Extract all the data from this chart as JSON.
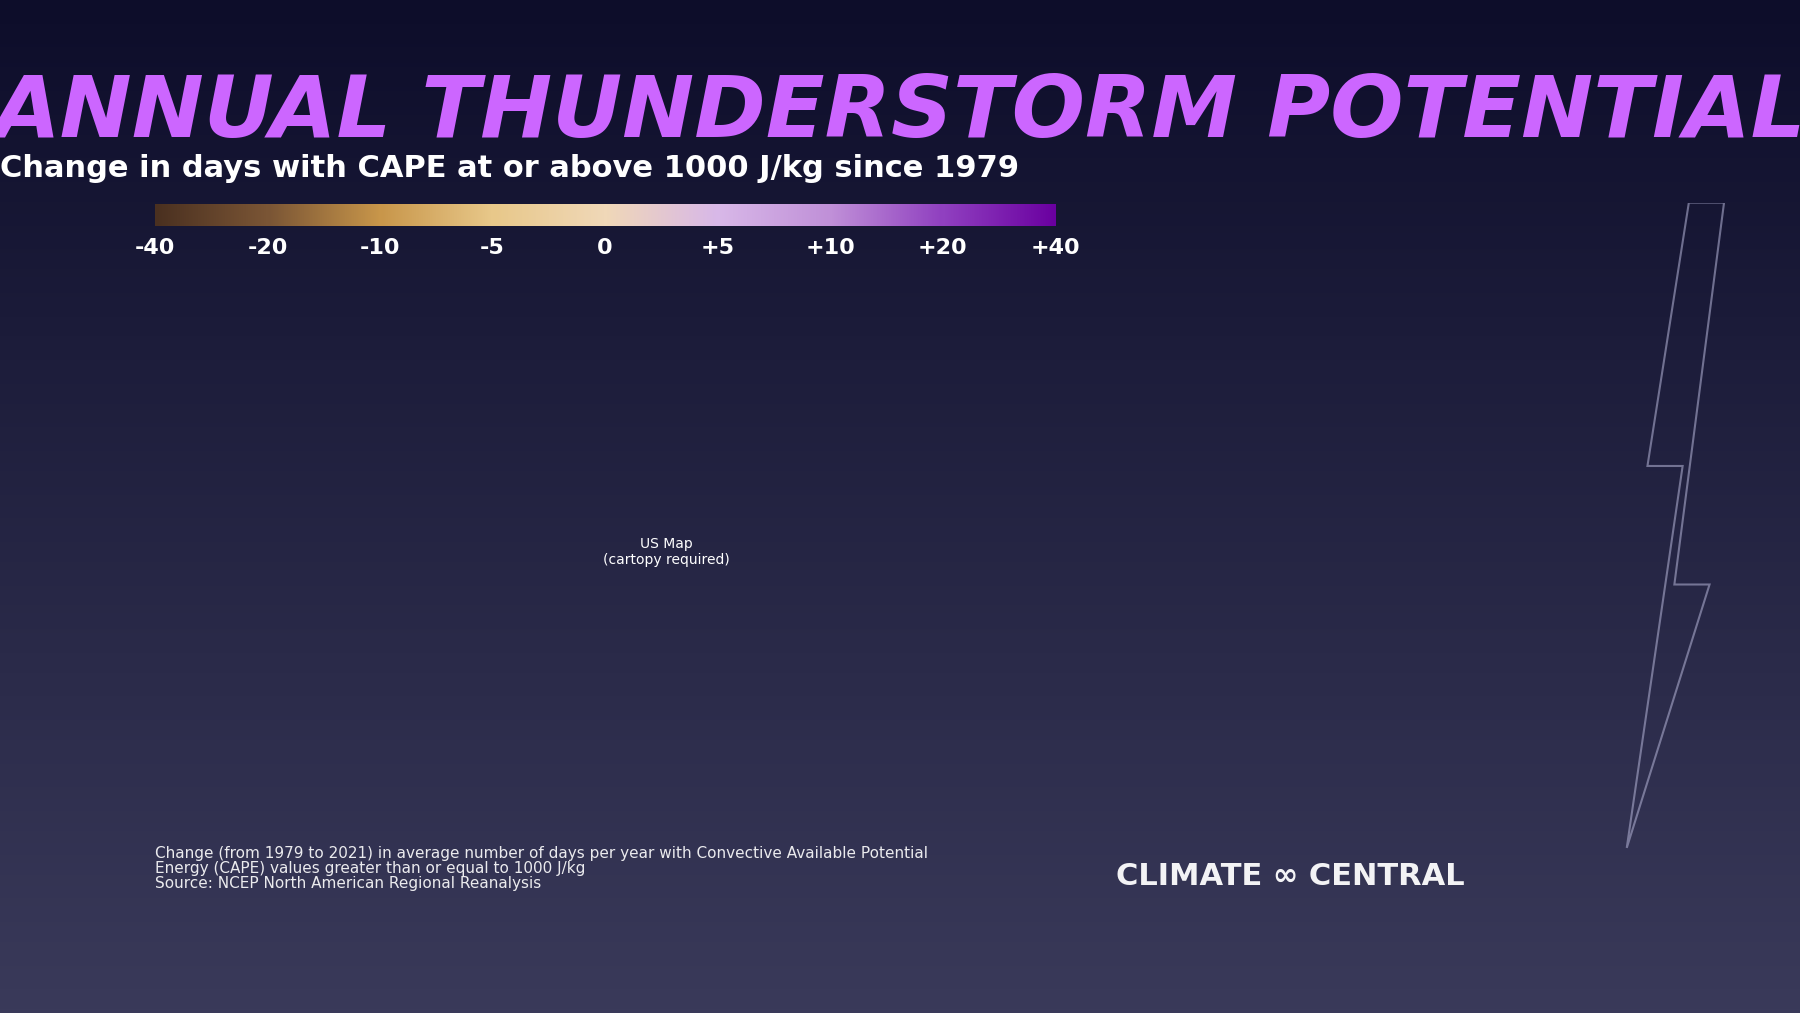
{
  "title": "ANNUAL THUNDERSTORM POTENTIAL",
  "subtitle": "Change in days with CAPE at or above 1000 J/kg since 1979",
  "footnote_line1": "Change (from 1979 to 2021) in average number of days per year with Convective Available Potential",
  "footnote_line2": "Energy (CAPE) values greater than or equal to 1000 J/kg",
  "footnote_line3": "Source: NCEP North American Regional Reanalysis",
  "colorbar_labels": [
    "-40",
    "-20",
    "-10",
    "-5",
    "0",
    "+5",
    "+10",
    "+20",
    "+40"
  ],
  "colorbar_values": [
    -40,
    -20,
    -10,
    -5,
    0,
    5,
    10,
    20,
    40
  ],
  "colorbar_colors": [
    "#4a3020",
    "#7a5535",
    "#c8964a",
    "#e8c88a",
    "#f0d8b8",
    "#d8b8e8",
    "#c090d8",
    "#9040c0",
    "#6a00a0"
  ],
  "bg_color_top": "#0d0d2a",
  "bg_color_bottom": "#3a3a5a",
  "title_color": "#cc66ff",
  "subtitle_color": "#ffffff",
  "footnote_color": "#ffffff",
  "credit_color": "#ffffff",
  "credit_text": "CLIMATE ∞ CENTRAL"
}
